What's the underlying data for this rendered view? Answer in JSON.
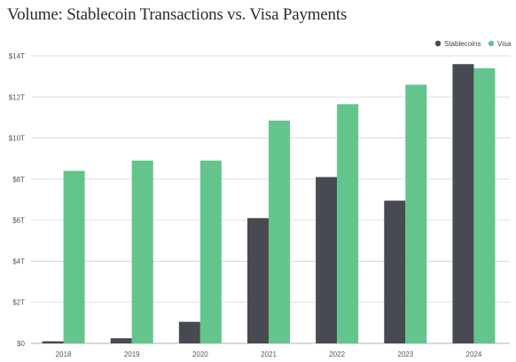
{
  "chart_data": {
    "type": "bar",
    "title": "Volume: Stablecoin Transactions vs. Visa Payments",
    "xlabel": "",
    "ylabel": "",
    "categories": [
      "2018",
      "2019",
      "2020",
      "2021",
      "2022",
      "2023",
      "2024"
    ],
    "series": [
      {
        "name": "Stablecoins",
        "color": "#474a50",
        "values": [
          0.1,
          0.25,
          1.05,
          6.1,
          8.1,
          6.95,
          13.6
        ]
      },
      {
        "name": "Visa",
        "color": "#63c58c",
        "values": [
          8.4,
          8.9,
          8.9,
          10.85,
          11.65,
          12.6,
          13.4
        ]
      }
    ],
    "ylim": [
      0,
      14
    ],
    "y_ticks": [
      0,
      2,
      4,
      6,
      8,
      10,
      12,
      14
    ],
    "y_tick_labels": [
      "$0",
      "$2T",
      "$4T",
      "$6T",
      "$8T",
      "$10T",
      "$12T",
      "$14T"
    ],
    "grid": true,
    "legend_position": "top-right"
  }
}
